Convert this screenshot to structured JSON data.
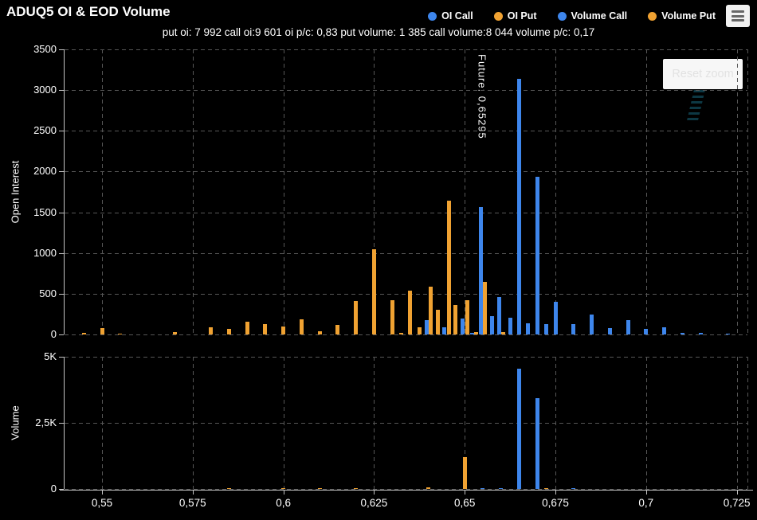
{
  "header": {
    "title": "ADUQ5 OI & EOD Volume",
    "subtitle": "put oi: 7 992 call oi:9 601 oi p/c: 0,83 put volume: 1 385 call volume:8 044 volume p/c: 0,17"
  },
  "legend": {
    "items": [
      {
        "label": "OI Call",
        "color": "#3E86EC"
      },
      {
        "label": "OI Put",
        "color": "#F0A232"
      },
      {
        "label": "Volume Call",
        "color": "#3E86EC"
      },
      {
        "label": "Volume Put",
        "color": "#F0A232"
      }
    ]
  },
  "buttons": {
    "reset_zoom": "Reset zoom"
  },
  "icons": {
    "menu": "hamburger-menu"
  },
  "colors": {
    "background": "#000000",
    "call": "#3E86EC",
    "put": "#F0A232",
    "grid": "#575757",
    "axis": "#C4C4C4",
    "text": "#FFFFFF"
  },
  "annotation": {
    "future_label": "Future: 0,65295",
    "future_price": 0.65295
  },
  "xaxis": {
    "tick_labels": [
      "0,55",
      "0,575",
      "0,6",
      "0,625",
      "0,65",
      "0,675",
      "0,7",
      "0,725"
    ],
    "tick_values": [
      0.55,
      0.575,
      0.6,
      0.625,
      0.65,
      0.675,
      0.7,
      0.725
    ],
    "min": 0.5397,
    "max": 0.7279
  },
  "chart_data": [
    {
      "type": "bar",
      "name": "open-interest",
      "ylabel": "Open Interest",
      "ylim": [
        0,
        3500
      ],
      "ytick_labels": [
        "0",
        "500",
        "1000",
        "1500",
        "2000",
        "2500",
        "3000",
        "3500"
      ],
      "ytick_values": [
        0,
        500,
        1000,
        1500,
        2000,
        2500,
        3000,
        3500
      ],
      "series": [
        {
          "name": "OI Call",
          "color": "#3E86EC",
          "points": [
            [
              0.64,
              180
            ],
            [
              0.645,
              90
            ],
            [
              0.65,
              200
            ],
            [
              0.6525,
              20
            ],
            [
              0.655,
              1560
            ],
            [
              0.6575,
              220
            ],
            [
              0.66,
              460
            ],
            [
              0.6625,
              210
            ],
            [
              0.665,
              3140
            ],
            [
              0.6675,
              140
            ],
            [
              0.67,
              1940
            ],
            [
              0.6725,
              130
            ],
            [
              0.675,
              400
            ],
            [
              0.68,
              130
            ],
            [
              0.685,
              240
            ],
            [
              0.69,
              80
            ],
            [
              0.695,
              175
            ],
            [
              0.7,
              70
            ],
            [
              0.705,
              90
            ],
            [
              0.71,
              15
            ],
            [
              0.715,
              15
            ],
            [
              0.7225,
              10
            ]
          ]
        },
        {
          "name": "OI Put",
          "color": "#F0A232",
          "points": [
            [
              0.545,
              20
            ],
            [
              0.55,
              80
            ],
            [
              0.555,
              10
            ],
            [
              0.57,
              30
            ],
            [
              0.58,
              90
            ],
            [
              0.585,
              70
            ],
            [
              0.59,
              160
            ],
            [
              0.595,
              130
            ],
            [
              0.6,
              100
            ],
            [
              0.605,
              190
            ],
            [
              0.61,
              40
            ],
            [
              0.615,
              120
            ],
            [
              0.62,
              410
            ],
            [
              0.625,
              1050
            ],
            [
              0.63,
              420
            ],
            [
              0.6325,
              20
            ],
            [
              0.635,
              540
            ],
            [
              0.6375,
              90
            ],
            [
              0.64,
              590
            ],
            [
              0.6425,
              300
            ],
            [
              0.645,
              1640
            ],
            [
              0.6475,
              360
            ],
            [
              0.65,
              420
            ],
            [
              0.6525,
              30
            ],
            [
              0.655,
              650
            ],
            [
              0.66,
              30
            ]
          ]
        }
      ]
    },
    {
      "type": "bar",
      "name": "volume",
      "ylabel": "Volume",
      "ylim": [
        0,
        5000
      ],
      "ytick_labels": [
        "0",
        "2,5K",
        "5K"
      ],
      "ytick_values": [
        0,
        2500,
        5000
      ],
      "series": [
        {
          "name": "Volume Call",
          "color": "#3E86EC",
          "points": [
            [
              0.655,
              30
            ],
            [
              0.66,
              40
            ],
            [
              0.665,
              4550
            ],
            [
              0.67,
              3430
            ],
            [
              0.68,
              30
            ]
          ]
        },
        {
          "name": "Volume Put",
          "color": "#F0A232",
          "points": [
            [
              0.585,
              20
            ],
            [
              0.6,
              30
            ],
            [
              0.61,
              25
            ],
            [
              0.62,
              30
            ],
            [
              0.64,
              50
            ],
            [
              0.65,
              1200
            ],
            [
              0.6725,
              30
            ]
          ]
        }
      ]
    }
  ]
}
